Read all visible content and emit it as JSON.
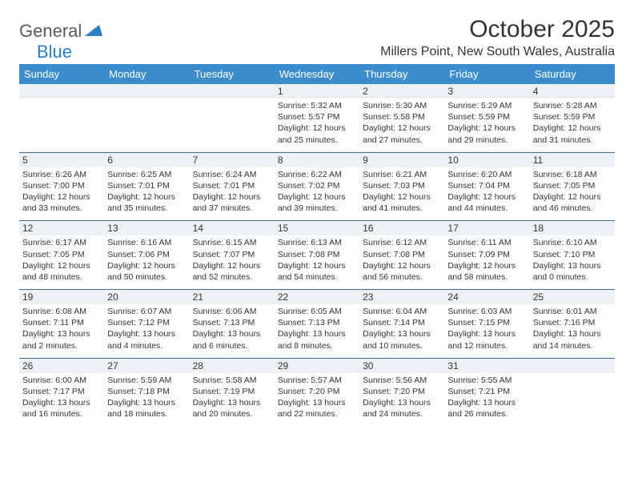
{
  "logo": {
    "gray": "General",
    "blue": "Blue"
  },
  "title": "October 2025",
  "location": "Millers Point, New South Wales, Australia",
  "colors": {
    "header_bg": "#3c8dcc",
    "header_text": "#ffffff",
    "daynum_bg": "#eef1f4",
    "border": "#3c6a8f",
    "logo_gray": "#5a5a5a",
    "logo_blue": "#2a7fc4"
  },
  "day_headers": [
    "Sunday",
    "Monday",
    "Tuesday",
    "Wednesday",
    "Thursday",
    "Friday",
    "Saturday"
  ],
  "weeks": [
    [
      null,
      null,
      null,
      {
        "n": "1",
        "sr": "Sunrise: 5:32 AM",
        "ss": "Sunset: 5:57 PM",
        "d1": "Daylight: 12 hours",
        "d2": "and 25 minutes."
      },
      {
        "n": "2",
        "sr": "Sunrise: 5:30 AM",
        "ss": "Sunset: 5:58 PM",
        "d1": "Daylight: 12 hours",
        "d2": "and 27 minutes."
      },
      {
        "n": "3",
        "sr": "Sunrise: 5:29 AM",
        "ss": "Sunset: 5:59 PM",
        "d1": "Daylight: 12 hours",
        "d2": "and 29 minutes."
      },
      {
        "n": "4",
        "sr": "Sunrise: 5:28 AM",
        "ss": "Sunset: 5:59 PM",
        "d1": "Daylight: 12 hours",
        "d2": "and 31 minutes."
      }
    ],
    [
      {
        "n": "5",
        "sr": "Sunrise: 6:26 AM",
        "ss": "Sunset: 7:00 PM",
        "d1": "Daylight: 12 hours",
        "d2": "and 33 minutes."
      },
      {
        "n": "6",
        "sr": "Sunrise: 6:25 AM",
        "ss": "Sunset: 7:01 PM",
        "d1": "Daylight: 12 hours",
        "d2": "and 35 minutes."
      },
      {
        "n": "7",
        "sr": "Sunrise: 6:24 AM",
        "ss": "Sunset: 7:01 PM",
        "d1": "Daylight: 12 hours",
        "d2": "and 37 minutes."
      },
      {
        "n": "8",
        "sr": "Sunrise: 6:22 AM",
        "ss": "Sunset: 7:02 PM",
        "d1": "Daylight: 12 hours",
        "d2": "and 39 minutes."
      },
      {
        "n": "9",
        "sr": "Sunrise: 6:21 AM",
        "ss": "Sunset: 7:03 PM",
        "d1": "Daylight: 12 hours",
        "d2": "and 41 minutes."
      },
      {
        "n": "10",
        "sr": "Sunrise: 6:20 AM",
        "ss": "Sunset: 7:04 PM",
        "d1": "Daylight: 12 hours",
        "d2": "and 44 minutes."
      },
      {
        "n": "11",
        "sr": "Sunrise: 6:18 AM",
        "ss": "Sunset: 7:05 PM",
        "d1": "Daylight: 12 hours",
        "d2": "and 46 minutes."
      }
    ],
    [
      {
        "n": "12",
        "sr": "Sunrise: 6:17 AM",
        "ss": "Sunset: 7:05 PM",
        "d1": "Daylight: 12 hours",
        "d2": "and 48 minutes."
      },
      {
        "n": "13",
        "sr": "Sunrise: 6:16 AM",
        "ss": "Sunset: 7:06 PM",
        "d1": "Daylight: 12 hours",
        "d2": "and 50 minutes."
      },
      {
        "n": "14",
        "sr": "Sunrise: 6:15 AM",
        "ss": "Sunset: 7:07 PM",
        "d1": "Daylight: 12 hours",
        "d2": "and 52 minutes."
      },
      {
        "n": "15",
        "sr": "Sunrise: 6:13 AM",
        "ss": "Sunset: 7:08 PM",
        "d1": "Daylight: 12 hours",
        "d2": "and 54 minutes."
      },
      {
        "n": "16",
        "sr": "Sunrise: 6:12 AM",
        "ss": "Sunset: 7:08 PM",
        "d1": "Daylight: 12 hours",
        "d2": "and 56 minutes."
      },
      {
        "n": "17",
        "sr": "Sunrise: 6:11 AM",
        "ss": "Sunset: 7:09 PM",
        "d1": "Daylight: 12 hours",
        "d2": "and 58 minutes."
      },
      {
        "n": "18",
        "sr": "Sunrise: 6:10 AM",
        "ss": "Sunset: 7:10 PM",
        "d1": "Daylight: 13 hours",
        "d2": "and 0 minutes."
      }
    ],
    [
      {
        "n": "19",
        "sr": "Sunrise: 6:08 AM",
        "ss": "Sunset: 7:11 PM",
        "d1": "Daylight: 13 hours",
        "d2": "and 2 minutes."
      },
      {
        "n": "20",
        "sr": "Sunrise: 6:07 AM",
        "ss": "Sunset: 7:12 PM",
        "d1": "Daylight: 13 hours",
        "d2": "and 4 minutes."
      },
      {
        "n": "21",
        "sr": "Sunrise: 6:06 AM",
        "ss": "Sunset: 7:13 PM",
        "d1": "Daylight: 13 hours",
        "d2": "and 6 minutes."
      },
      {
        "n": "22",
        "sr": "Sunrise: 6:05 AM",
        "ss": "Sunset: 7:13 PM",
        "d1": "Daylight: 13 hours",
        "d2": "and 8 minutes."
      },
      {
        "n": "23",
        "sr": "Sunrise: 6:04 AM",
        "ss": "Sunset: 7:14 PM",
        "d1": "Daylight: 13 hours",
        "d2": "and 10 minutes."
      },
      {
        "n": "24",
        "sr": "Sunrise: 6:03 AM",
        "ss": "Sunset: 7:15 PM",
        "d1": "Daylight: 13 hours",
        "d2": "and 12 minutes."
      },
      {
        "n": "25",
        "sr": "Sunrise: 6:01 AM",
        "ss": "Sunset: 7:16 PM",
        "d1": "Daylight: 13 hours",
        "d2": "and 14 minutes."
      }
    ],
    [
      {
        "n": "26",
        "sr": "Sunrise: 6:00 AM",
        "ss": "Sunset: 7:17 PM",
        "d1": "Daylight: 13 hours",
        "d2": "and 16 minutes."
      },
      {
        "n": "27",
        "sr": "Sunrise: 5:59 AM",
        "ss": "Sunset: 7:18 PM",
        "d1": "Daylight: 13 hours",
        "d2": "and 18 minutes."
      },
      {
        "n": "28",
        "sr": "Sunrise: 5:58 AM",
        "ss": "Sunset: 7:19 PM",
        "d1": "Daylight: 13 hours",
        "d2": "and 20 minutes."
      },
      {
        "n": "29",
        "sr": "Sunrise: 5:57 AM",
        "ss": "Sunset: 7:20 PM",
        "d1": "Daylight: 13 hours",
        "d2": "and 22 minutes."
      },
      {
        "n": "30",
        "sr": "Sunrise: 5:56 AM",
        "ss": "Sunset: 7:20 PM",
        "d1": "Daylight: 13 hours",
        "d2": "and 24 minutes."
      },
      {
        "n": "31",
        "sr": "Sunrise: 5:55 AM",
        "ss": "Sunset: 7:21 PM",
        "d1": "Daylight: 13 hours",
        "d2": "and 26 minutes."
      },
      null
    ]
  ]
}
